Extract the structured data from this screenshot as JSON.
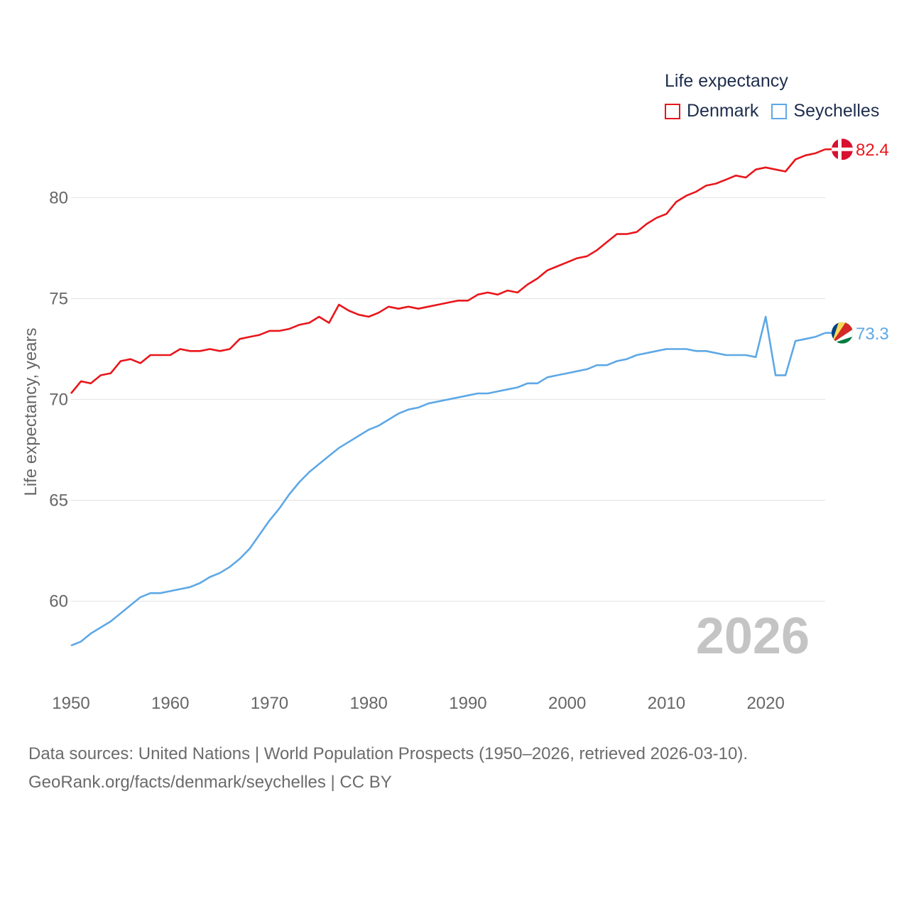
{
  "legend": {
    "title": "Life expectancy",
    "items": [
      {
        "label": "Denmark",
        "color": "#e8161b"
      },
      {
        "label": "Seychelles",
        "color": "#5ea8e6"
      }
    ]
  },
  "year_watermark": "2026",
  "source": {
    "line1": "Data sources: United Nations | World Population Prospects (1950–2026, retrieved 2026-03-10).",
    "line2": "GeoRank.org/facts/denmark/seychelles | CC BY"
  },
  "chart_data": {
    "type": "line",
    "title": "Life expectancy",
    "xlabel": "",
    "ylabel": "Life expectancy, years",
    "xlim": [
      1950,
      2026
    ],
    "ylim": [
      56.5,
      83.5
    ],
    "x_ticks": [
      1950,
      1960,
      1970,
      1980,
      1990,
      2000,
      2010,
      2020
    ],
    "y_ticks": [
      60,
      65,
      70,
      75,
      80
    ],
    "grid": "horizontal",
    "legend_position": "top-right",
    "x": [
      1950,
      1951,
      1952,
      1953,
      1954,
      1955,
      1956,
      1957,
      1958,
      1959,
      1960,
      1961,
      1962,
      1963,
      1964,
      1965,
      1966,
      1967,
      1968,
      1969,
      1970,
      1971,
      1972,
      1973,
      1974,
      1975,
      1976,
      1977,
      1978,
      1979,
      1980,
      1981,
      1982,
      1983,
      1984,
      1985,
      1986,
      1987,
      1988,
      1989,
      1990,
      1991,
      1992,
      1993,
      1994,
      1995,
      1996,
      1997,
      1998,
      1999,
      2000,
      2001,
      2002,
      2003,
      2004,
      2005,
      2006,
      2007,
      2008,
      2009,
      2010,
      2011,
      2012,
      2013,
      2014,
      2015,
      2016,
      2017,
      2018,
      2019,
      2020,
      2021,
      2022,
      2023,
      2024,
      2025,
      2026
    ],
    "series": [
      {
        "name": "Denmark",
        "color": "#e8161b",
        "end_label": "82.4",
        "values": [
          70.3,
          70.9,
          70.8,
          71.2,
          71.3,
          71.9,
          72.0,
          71.8,
          72.2,
          72.2,
          72.2,
          72.5,
          72.4,
          72.4,
          72.5,
          72.4,
          72.5,
          73.0,
          73.1,
          73.2,
          73.4,
          73.4,
          73.5,
          73.7,
          73.8,
          74.1,
          73.8,
          74.7,
          74.4,
          74.2,
          74.1,
          74.3,
          74.6,
          74.5,
          74.6,
          74.5,
          74.6,
          74.7,
          74.8,
          74.9,
          74.9,
          75.2,
          75.3,
          75.2,
          75.4,
          75.3,
          75.7,
          76.0,
          76.4,
          76.6,
          76.8,
          77.0,
          77.1,
          77.4,
          77.8,
          78.2,
          78.2,
          78.3,
          78.7,
          79.0,
          79.2,
          79.8,
          80.1,
          80.3,
          80.6,
          80.7,
          80.9,
          81.1,
          81.0,
          81.4,
          81.5,
          81.4,
          81.3,
          81.9,
          82.1,
          82.2,
          82.4
        ]
      },
      {
        "name": "Seychelles",
        "color": "#5ea8e6",
        "end_label": "73.3",
        "values": [
          57.8,
          58.0,
          58.4,
          58.7,
          59.0,
          59.4,
          59.8,
          60.2,
          60.4,
          60.4,
          60.5,
          60.6,
          60.7,
          60.9,
          61.2,
          61.4,
          61.7,
          62.1,
          62.6,
          63.3,
          64.0,
          64.6,
          65.3,
          65.9,
          66.4,
          66.8,
          67.2,
          67.6,
          67.9,
          68.2,
          68.5,
          68.7,
          69.0,
          69.3,
          69.5,
          69.6,
          69.8,
          69.9,
          70.0,
          70.1,
          70.2,
          70.3,
          70.3,
          70.4,
          70.5,
          70.6,
          70.8,
          70.8,
          71.1,
          71.2,
          71.3,
          71.4,
          71.5,
          71.7,
          71.7,
          71.9,
          72.0,
          72.2,
          72.3,
          72.4,
          72.5,
          72.5,
          72.5,
          72.4,
          72.4,
          72.3,
          72.2,
          72.2,
          72.2,
          72.1,
          74.1,
          71.2,
          71.2,
          72.9,
          73.0,
          73.1,
          73.3
        ]
      }
    ]
  }
}
